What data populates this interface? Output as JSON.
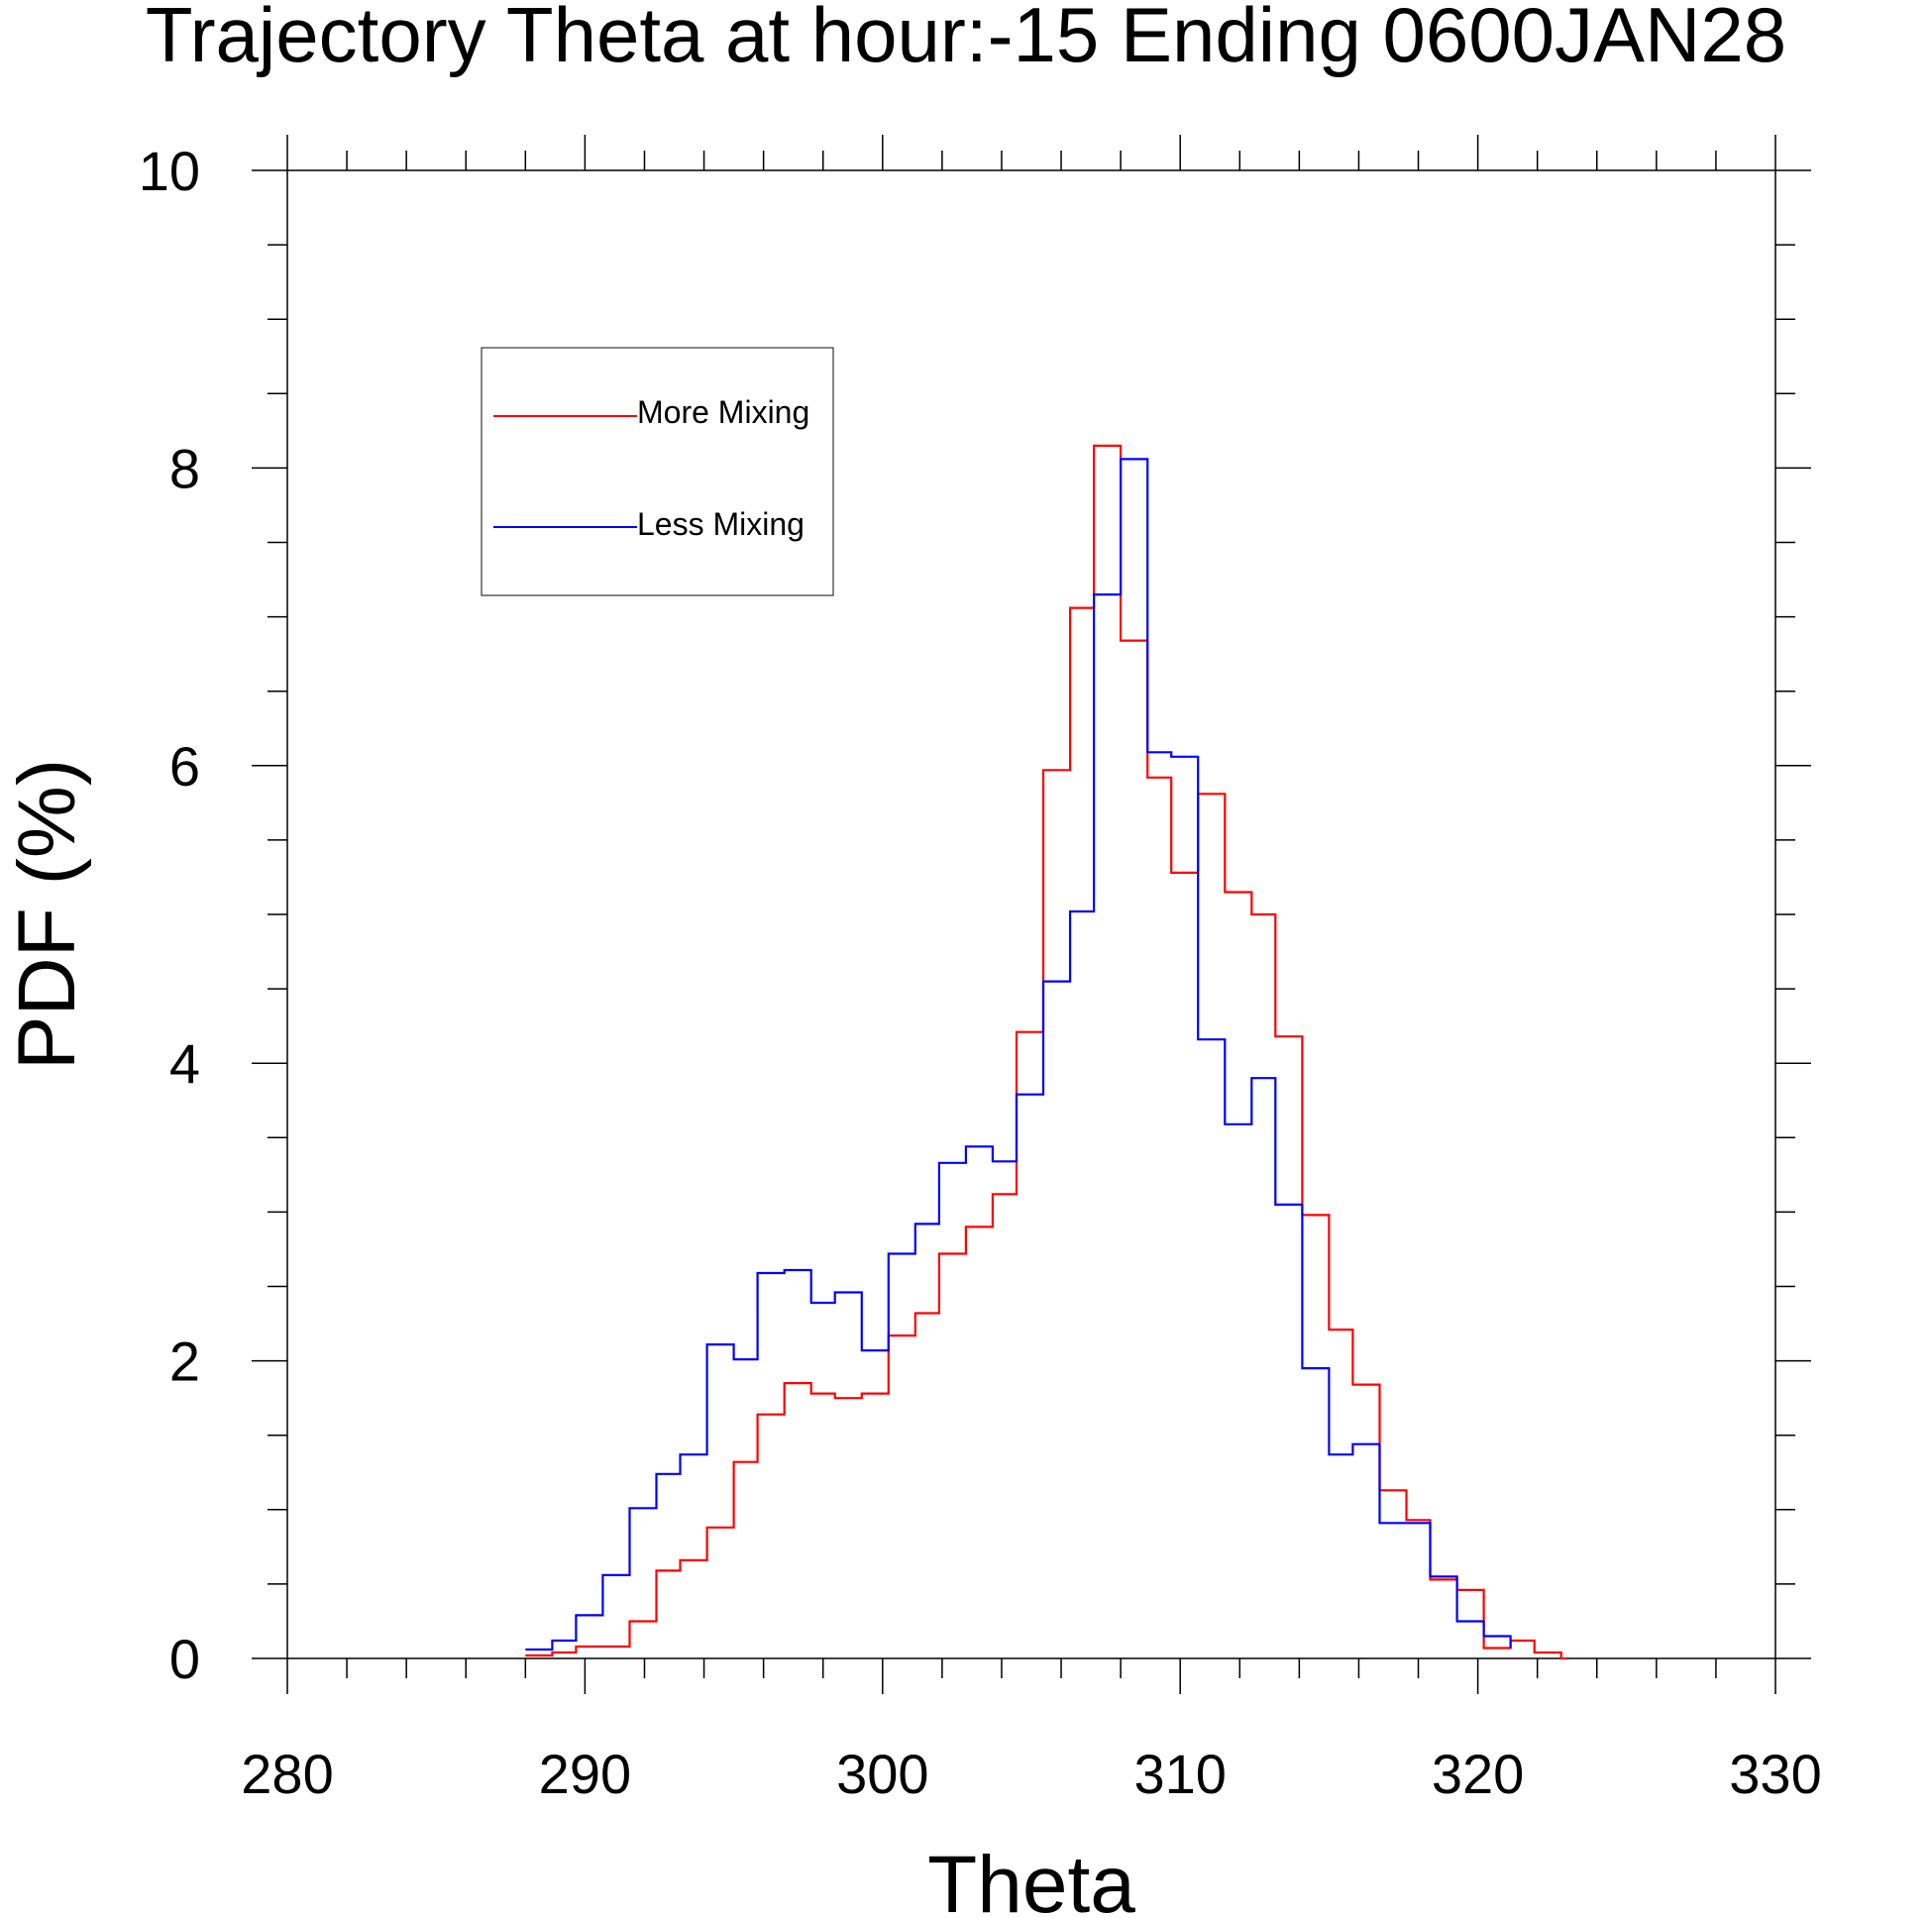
{
  "chart_data": {
    "type": "line",
    "step": true,
    "title": "Trajectory Theta at hour:-15 Ending 0600JAN28",
    "xlabel": "Theta",
    "ylabel": "PDF (%)",
    "xlim": [
      280,
      330
    ],
    "ylim": [
      0,
      10
    ],
    "xticks": [
      280,
      290,
      300,
      310,
      320,
      330
    ],
    "yticks": [
      0,
      2,
      4,
      6,
      8,
      10
    ],
    "x_minor_step": 2,
    "y_minor_step": 0.5,
    "bin_width": 0.87,
    "legend_position": "upper-left",
    "series": [
      {
        "name": "More Mixing",
        "color": "#ff0000",
        "bin_starts": [
          288.0,
          288.9,
          289.7,
          290.6,
          291.5,
          292.4,
          293.2,
          294.1,
          295.0,
          295.8,
          296.7,
          297.6,
          298.4,
          299.3,
          300.2,
          301.1,
          301.9,
          302.8,
          303.7,
          304.5,
          305.4,
          306.3,
          307.1,
          308.0,
          308.9,
          309.7,
          310.6,
          311.5,
          312.4,
          313.2,
          314.1,
          315.0,
          315.8,
          316.7,
          317.6,
          318.4,
          319.3,
          320.2,
          321.1,
          321.9,
          322.8
        ],
        "bin_end": 323.0,
        "values": [
          0.02,
          0.04,
          0.08,
          0.08,
          0.25,
          0.59,
          0.66,
          0.88,
          1.32,
          1.64,
          1.85,
          1.78,
          1.75,
          1.78,
          2.17,
          2.32,
          2.72,
          2.9,
          3.12,
          4.21,
          5.97,
          7.06,
          8.15,
          6.84,
          5.92,
          5.28,
          5.81,
          5.15,
          5.0,
          4.18,
          2.98,
          2.21,
          1.84,
          1.13,
          0.93,
          0.53,
          0.46,
          0.07,
          0.12,
          0.04,
          0.0
        ]
      },
      {
        "name": "Less Mixing",
        "color": "#0000ff",
        "bin_starts": [
          288.0,
          288.9,
          289.7,
          290.6,
          291.5,
          292.4,
          293.2,
          294.1,
          295.0,
          295.8,
          296.7,
          297.6,
          298.4,
          299.3,
          300.2,
          301.1,
          301.9,
          302.8,
          303.7,
          304.5,
          305.4,
          306.3,
          307.1,
          308.0,
          308.9,
          309.7,
          310.6,
          311.5,
          312.4,
          313.2,
          314.1,
          315.0,
          315.8,
          316.7,
          317.6,
          318.4,
          319.3,
          320.2,
          321.1
        ],
        "bin_end": 321.1,
        "values": [
          0.06,
          0.12,
          0.29,
          0.56,
          1.01,
          1.24,
          1.37,
          2.11,
          2.01,
          2.59,
          2.61,
          2.39,
          2.46,
          2.07,
          2.72,
          2.92,
          3.33,
          3.44,
          3.34,
          3.79,
          4.55,
          5.02,
          7.15,
          8.06,
          6.09,
          6.06,
          4.16,
          3.59,
          3.9,
          3.05,
          1.95,
          1.37,
          1.44,
          0.91,
          0.91,
          0.55,
          0.25,
          0.15,
          0.07
        ]
      }
    ]
  }
}
